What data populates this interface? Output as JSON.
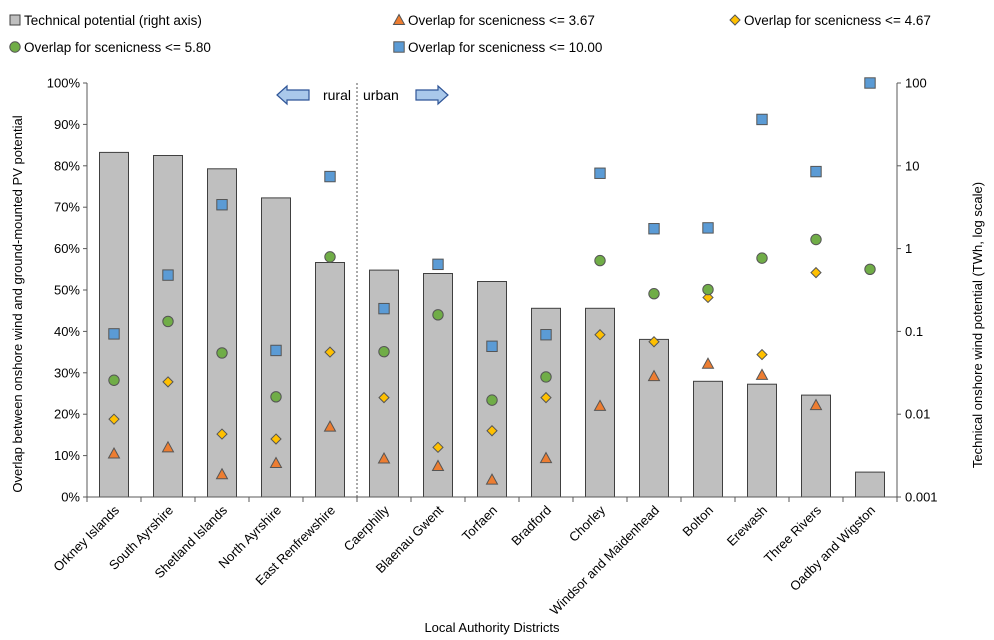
{
  "chart_data": {
    "type": "bar",
    "xlabel": "Local Authority Districts",
    "ylabel_left": "Overlap between onshore wind and ground-mounted PV potential",
    "ylabel_right": "Technical onshore wind potential (TWh, log scale)",
    "y_left_range": [
      0,
      100
    ],
    "y_left_ticks": [
      "0%",
      "10%",
      "20%",
      "30%",
      "40%",
      "50%",
      "60%",
      "70%",
      "80%",
      "90%",
      "100%"
    ],
    "y_right_range": [
      0.001,
      100
    ],
    "y_right_scale": "log",
    "y_right_ticks": [
      "0.001",
      "0.01",
      "0.1",
      "1",
      "10",
      "100"
    ],
    "grid": false,
    "legend_position": "top",
    "divider": {
      "after_index": 4,
      "left_label": "rural",
      "right_label": "urban"
    },
    "categories": [
      "Orkney Islands",
      "South Ayrshire",
      "Shetland Islands",
      "North Ayrshire",
      "East Renfrewshire",
      "Caerphilly",
      "Blaenau Gwent",
      "Torfaen",
      "Bradford",
      "Chorley",
      "Windsor and Maidenhead",
      "Bolton",
      "Erewash",
      "Three Rivers",
      "Oadby and Wigston"
    ],
    "bar_series": {
      "name": "Technical potential (right axis)",
      "axis": "right",
      "color": "#bfbfbf",
      "values": [
        14.5,
        13.3,
        9.2,
        4.1,
        0.68,
        0.55,
        0.5,
        0.4,
        0.19,
        0.19,
        0.08,
        0.025,
        0.023,
        0.017,
        0.002
      ]
    },
    "series": [
      {
        "name": "Overlap for scenicness <= 3.67",
        "marker": "triangle",
        "color": "#ed7d31",
        "values": [
          10.5,
          12,
          5.5,
          8.2,
          17,
          9.3,
          7.5,
          4.2,
          9.4,
          22,
          29.2,
          32.2,
          29.5,
          22.2,
          null
        ]
      },
      {
        "name": "Overlap for scenicness <= 4.67",
        "marker": "diamond",
        "color": "#ffc000",
        "values": [
          18.8,
          27.8,
          15.2,
          14,
          35,
          24,
          12,
          16,
          24,
          39.2,
          37.5,
          48.2,
          34.4,
          54.2,
          null
        ]
      },
      {
        "name": "Overlap for scenicness <= 5.80",
        "marker": "circle",
        "color": "#70ad47",
        "values": [
          28.2,
          42.4,
          34.8,
          24.2,
          58,
          35.1,
          44,
          23.4,
          29,
          57.1,
          49.1,
          50.1,
          57.7,
          62.2,
          55
        ]
      },
      {
        "name": "Overlap for scenicness <= 10.00",
        "marker": "square",
        "color": "#5b9bd5",
        "values": [
          39.4,
          53.6,
          70.6,
          35.4,
          77.4,
          45.5,
          56.2,
          36.4,
          39.2,
          78.2,
          64.8,
          65,
          91.2,
          78.6,
          100
        ]
      }
    ]
  }
}
